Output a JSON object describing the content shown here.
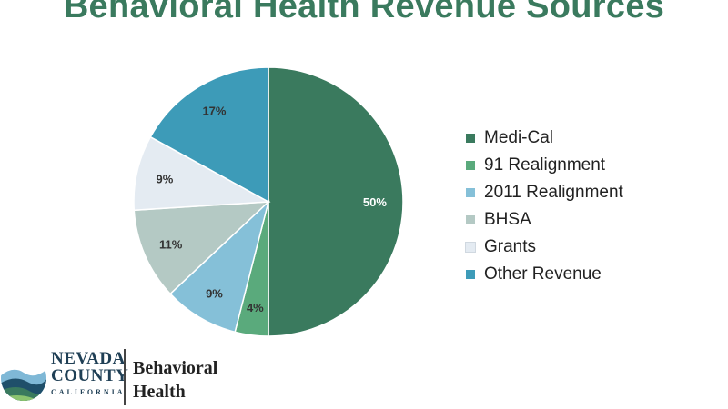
{
  "title": "Behavioral Health Revenue Sources",
  "chart_data": {
    "type": "pie",
    "slices": [
      {
        "label": "Medi-Cal",
        "value": 50,
        "display": "50%",
        "color": "#3a7a5e"
      },
      {
        "label": "91 Realignment",
        "value": 4,
        "display": "4%",
        "color": "#5aaa7c"
      },
      {
        "label": "2011 Realignment",
        "value": 9,
        "display": "9%",
        "color": "#85c0d8"
      },
      {
        "label": "BHSA",
        "value": 11,
        "display": "11%",
        "color": "#b4c9c4"
      },
      {
        "label": "Grants",
        "value": 9,
        "display": "9%",
        "color": "#e4ebf2"
      },
      {
        "label": "Other Revenue",
        "value": 17,
        "display": "17%",
        "color": "#3d9bb8"
      }
    ],
    "legend_position": "right"
  },
  "logo": {
    "line1": "NEVADA",
    "line2": "COUNTY",
    "sub": "CALIFORNIA",
    "dept_line1": "Behavioral",
    "dept_line2": "Health"
  }
}
